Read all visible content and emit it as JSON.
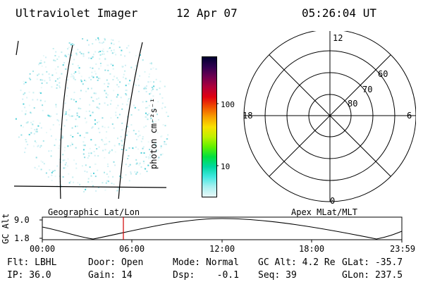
{
  "header": {
    "title": "Ultraviolet Imager",
    "date": "12 Apr 07",
    "time": "05:26:04 UT"
  },
  "geo_panel": {
    "label": "Geographic Lat/Lon"
  },
  "apex_panel": {
    "label": "Apex MLat/MLT",
    "mlt_labels": {
      "top": "12",
      "left": "18",
      "right": "6",
      "bottom": "0"
    },
    "lat_labels": [
      "60",
      "70",
      "80"
    ]
  },
  "colorbar": {
    "unit": "photon cm⁻²s⁻¹",
    "ticks": [
      {
        "label": "100",
        "value": 100
      },
      {
        "label": "10",
        "value": 10
      }
    ],
    "colors": [
      "#000030",
      "#300050",
      "#700050",
      "#b0003a",
      "#e00010",
      "#f05000",
      "#f8a000",
      "#f8e000",
      "#c0f000",
      "#60f000",
      "#00e040",
      "#00d8a0",
      "#40e8e0",
      "#a8f0f0",
      "#e8f8f8"
    ]
  },
  "orbit_plot": {
    "ylabel": "GC Alt",
    "y_ticks": [
      "9.0",
      "1.8"
    ],
    "x_ticks": [
      "00:00",
      "06:00",
      "12:00",
      "18:00",
      "23:59"
    ],
    "current_time_marker": "05:26"
  },
  "status": {
    "filter": "Flt: LBHL",
    "door": "Door: Open",
    "mode": "Mode: Normal",
    "gc_alt": "GC Alt: 4.2 Re",
    "glat": "GLat: -35.7",
    "ip": "IP: 36.0",
    "gain": "Gain: 14",
    "dsp": "Dsp:    -0.1",
    "seq": "Seq: 39",
    "glon": "GLon: 237.5"
  }
}
